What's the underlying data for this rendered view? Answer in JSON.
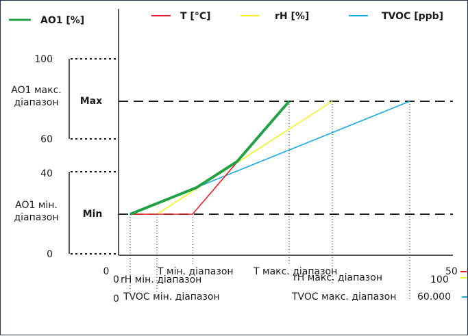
{
  "legend": {
    "ao1": "AO1 [%]",
    "t": "T [°C]",
    "rh": "rH [%]",
    "tvoc": "TVOC [ppb]"
  },
  "colors": {
    "ao1": "#22a045",
    "t": "#e0202a",
    "rh": "#f2f02a",
    "tvoc": "#1aa8e0",
    "axis": "#1a1a1a"
  },
  "yaxis": {
    "tick100": "100",
    "tick60": "60",
    "tick40": "40",
    "tick0": "0",
    "max_range_line1": "AO1 макс.",
    "max_range_line2": "діапазон",
    "min_range_line1": "AO1 мін.",
    "min_range_line2": "діапазон",
    "max_label": "Max",
    "min_label": "Min"
  },
  "xaxis": {
    "t_zero": "0",
    "t_min": "T мін. діапазон",
    "t_max": "T макс. діапазон",
    "t_end": "50",
    "rh_zero": "0",
    "rh_min": "rH мін. діапазон",
    "rh_max": "rH макс. діапазон",
    "rh_end": "100",
    "tvoc_zero": "0",
    "tvoc_min": "TVOC мін. діапазон",
    "tvoc_max": "TVOC макс. діапазон",
    "tvoc_end": "60.000"
  }
}
